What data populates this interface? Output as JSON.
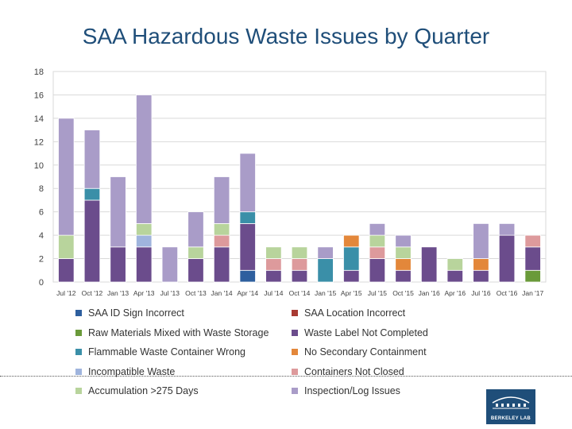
{
  "page": {
    "title": "SAA Hazardous Waste Issues by Quarter",
    "logo_text": "BERKELEY LAB"
  },
  "chart_data": {
    "type": "bar",
    "stacked": true,
    "title": "SAA Hazardous Waste Issues by Quarter",
    "xlabel": "",
    "ylabel": "",
    "ylim": [
      0,
      18
    ],
    "yticks": [
      0,
      2,
      4,
      6,
      8,
      10,
      12,
      14,
      16,
      18
    ],
    "grid": true,
    "categories": [
      "Jul '12",
      "Oct '12",
      "Jan '13",
      "Apr '13",
      "Jul '13",
      "Oct '13",
      "Jan '14",
      "Apr '14",
      "Jul '14",
      "Oct '14",
      "Jan '15",
      "Apr '15",
      "Jul '15",
      "Oct '15",
      "Jan '16",
      "Apr '16",
      "Jul '16",
      "Oct '16",
      "Jan '17"
    ],
    "series": [
      {
        "name": "SAA ID Sign Incorrect",
        "color": "#2e5f9e",
        "values": [
          0,
          0,
          0,
          0,
          0,
          0,
          0,
          1,
          0,
          0,
          0,
          0,
          0,
          0,
          0,
          0,
          0,
          0,
          0
        ]
      },
      {
        "name": "SAA Location Incorrect",
        "color": "#a83a32",
        "values": [
          0,
          0,
          0,
          0,
          0,
          0,
          0,
          0,
          0,
          0,
          0,
          0,
          0,
          0,
          0,
          0,
          0,
          0,
          0
        ]
      },
      {
        "name": "Raw Materials Mixed with Waste Storage",
        "color": "#6a9a3a",
        "values": [
          0,
          0,
          0,
          0,
          0,
          0,
          0,
          0,
          0,
          0,
          0,
          0,
          0,
          0,
          0,
          0,
          0,
          0,
          1
        ]
      },
      {
        "name": "Waste Label Not Completed",
        "color": "#6b4c8c",
        "values": [
          2,
          7,
          3,
          3,
          0,
          2,
          3,
          4,
          1,
          1,
          0,
          1,
          2,
          1,
          3,
          1,
          1,
          4,
          2
        ]
      },
      {
        "name": "Flammable Waste Container Wrong",
        "color": "#3a8fa8",
        "values": [
          0,
          1,
          0,
          0,
          0,
          0,
          0,
          1,
          0,
          0,
          2,
          2,
          0,
          0,
          0,
          0,
          0,
          0,
          0
        ]
      },
      {
        "name": "No Secondary Containment",
        "color": "#e3873a",
        "values": [
          0,
          0,
          0,
          0,
          0,
          0,
          0,
          0,
          0,
          0,
          0,
          1,
          0,
          1,
          0,
          0,
          1,
          0,
          0
        ]
      },
      {
        "name": "Incompatible Waste",
        "color": "#9fb4dd",
        "values": [
          0,
          0,
          0,
          1,
          0,
          0,
          0,
          0,
          0,
          0,
          0,
          0,
          0,
          0,
          0,
          0,
          0,
          0,
          0
        ]
      },
      {
        "name": "Containers Not Closed",
        "color": "#dd9a9c",
        "values": [
          0,
          0,
          0,
          0,
          0,
          0,
          1,
          0,
          1,
          1,
          0,
          0,
          1,
          0,
          0,
          0,
          0,
          0,
          1
        ]
      },
      {
        "name": "Accumulation >275 Days",
        "color": "#b8d49c",
        "values": [
          2,
          0,
          0,
          1,
          0,
          1,
          1,
          0,
          1,
          1,
          0,
          0,
          1,
          1,
          0,
          1,
          0,
          0,
          0
        ]
      },
      {
        "name": "Inspection/Log Issues",
        "color": "#a99cc8",
        "values": [
          10,
          5,
          6,
          11,
          3,
          3,
          4,
          5,
          0,
          0,
          1,
          0,
          1,
          1,
          0,
          0,
          3,
          1,
          0
        ]
      }
    ],
    "legend_position": "bottom"
  }
}
